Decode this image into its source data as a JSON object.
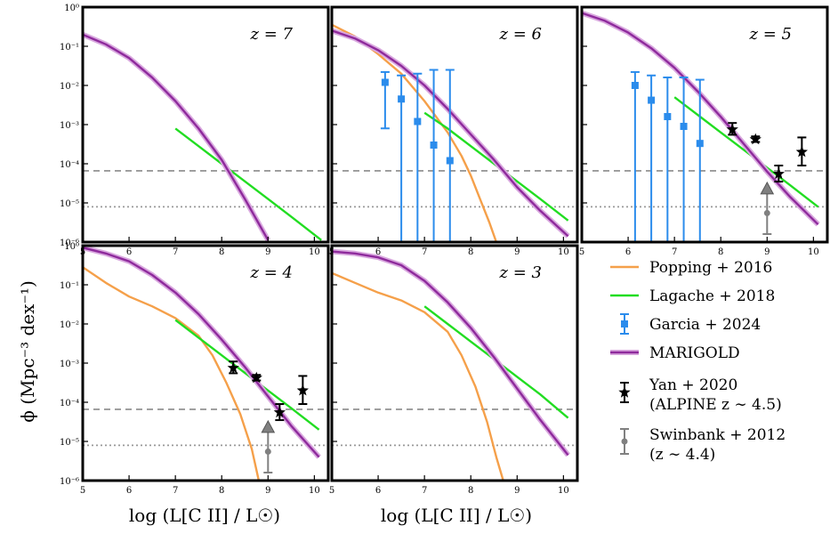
{
  "figure": {
    "ylabel": "ϕ (Mpc⁻³ dex⁻¹)",
    "xlabel": "log (L[C II] / L☉)"
  },
  "colors": {
    "popping": "#f5a04a",
    "lagache": "#22dd22",
    "garcia": "#2b8cec",
    "marigold": "#8e2a9c",
    "marigold_band": "#d9a8df",
    "yan": "#000000",
    "swinbank": "#808080",
    "hline_dashed": "#999999",
    "hline_dotted": "#999999"
  },
  "legend": [
    {
      "key": "popping",
      "label": "Popping + 2016"
    },
    {
      "key": "lagache",
      "label": "Lagache + 2018"
    },
    {
      "key": "garcia",
      "label": "Garcia + 2024"
    },
    {
      "key": "marigold",
      "label": "MARIGOLD"
    },
    {
      "key": "yan",
      "label": "Yan + 2020",
      "label2": "(ALPINE z ∼ 4.5)"
    },
    {
      "key": "swinbank",
      "label": "Swinbank + 2012",
      "label2": "(z ∼ 4.4)"
    }
  ],
  "chart_data": [
    {
      "type": "line",
      "panel": "z7",
      "title": "z = 7",
      "xlim": [
        5,
        10.3
      ],
      "ylim_log10": [
        -6,
        0
      ],
      "xticks": [
        "5",
        "6",
        "7",
        "8",
        "9",
        "10"
      ],
      "yticks": [
        "10⁻⁶",
        "10⁻⁵",
        "10⁻⁴",
        "10⁻³",
        "10⁻²",
        "10⁻¹",
        "10⁰"
      ],
      "hlines_log10": {
        "dashed": -4.18,
        "dotted": -5.1
      },
      "series": [
        {
          "name": "Marigold",
          "x": [
            5,
            5.5,
            6,
            6.5,
            7,
            7.5,
            8,
            8.5,
            9.0
          ],
          "y_log10": [
            -0.7,
            -0.95,
            -1.3,
            -1.8,
            -2.4,
            -3.1,
            -3.9,
            -4.9,
            -5.95
          ]
        },
        {
          "name": "Lagache",
          "x": [
            7,
            7.5,
            8,
            8.5,
            9,
            9.5,
            10.15
          ],
          "y_log10": [
            -3.1,
            -3.55,
            -4.0,
            -4.45,
            -4.9,
            -5.35,
            -5.95
          ]
        }
      ]
    },
    {
      "type": "line",
      "panel": "z6",
      "title": "z = 6",
      "xlim": [
        5,
        10.3
      ],
      "ylim_log10": [
        -6,
        0
      ],
      "xticks": [
        "5",
        "6",
        "7",
        "8",
        "9",
        "10"
      ],
      "yticks": [],
      "hlines_log10": {
        "dashed": -4.18,
        "dotted": -5.1
      },
      "series": [
        {
          "name": "Popping",
          "x": [
            5,
            5.5,
            6,
            6.5,
            7,
            7.5,
            7.8,
            8.0,
            8.2,
            8.4,
            8.55
          ],
          "y_log10": [
            -0.45,
            -0.75,
            -1.2,
            -1.7,
            -2.4,
            -3.2,
            -3.8,
            -4.3,
            -4.9,
            -5.5,
            -6.0
          ]
        },
        {
          "name": "Marigold",
          "x": [
            5,
            5.5,
            6,
            6.5,
            7,
            7.5,
            8,
            8.5,
            9,
            9.5,
            10.1
          ],
          "y_log10": [
            -0.6,
            -0.8,
            -1.1,
            -1.5,
            -2.0,
            -2.6,
            -3.25,
            -3.9,
            -4.6,
            -5.2,
            -5.85
          ]
        },
        {
          "name": "Lagache",
          "x": [
            7,
            7.5,
            8,
            8.5,
            9,
            9.5,
            10.1
          ],
          "y_log10": [
            -2.7,
            -3.1,
            -3.55,
            -4.0,
            -4.45,
            -4.9,
            -5.45
          ]
        },
        {
          "name": "Garcia",
          "type": "errorbar",
          "x": [
            6.15,
            6.5,
            6.85,
            7.2,
            7.55
          ],
          "y": [
            0.012,
            0.0045,
            0.0012,
            0.0003,
            0.00012
          ],
          "yerr_hi": [
            0.022,
            0.018,
            0.02,
            0.025,
            0.025
          ],
          "yerr_lo": [
            0.0008,
            1e-06,
            1e-06,
            1e-06,
            1e-06
          ]
        }
      ]
    },
    {
      "type": "line",
      "panel": "z5",
      "title": "z = 5",
      "xlim": [
        5,
        10.3
      ],
      "ylim_log10": [
        -6,
        0
      ],
      "xticks": [
        "5",
        "6",
        "7",
        "8",
        "9",
        "10"
      ],
      "yticks": [],
      "hlines_log10": {
        "dashed": -4.18,
        "dotted": -5.1
      },
      "series": [
        {
          "name": "Marigold",
          "x": [
            5,
            5.5,
            6,
            6.5,
            7,
            7.5,
            8,
            8.5,
            9,
            9.5,
            10.1
          ],
          "y_log10": [
            -0.15,
            -0.35,
            -0.65,
            -1.05,
            -1.55,
            -2.15,
            -2.8,
            -3.5,
            -4.2,
            -4.85,
            -5.55
          ]
        },
        {
          "name": "Lagache",
          "x": [
            7,
            7.5,
            8,
            8.5,
            9,
            9.5,
            10.1
          ],
          "y_log10": [
            -2.3,
            -2.75,
            -3.2,
            -3.65,
            -4.1,
            -4.55,
            -5.1
          ]
        },
        {
          "name": "Garcia",
          "type": "errorbar",
          "x": [
            6.15,
            6.5,
            6.85,
            7.2,
            7.55
          ],
          "y": [
            0.01,
            0.0042,
            0.0016,
            0.0009,
            0.00033
          ],
          "yerr_hi": [
            0.022,
            0.018,
            0.016,
            0.016,
            0.014
          ],
          "yerr_lo": [
            1e-06,
            1e-06,
            1e-06,
            1e-06,
            1e-06
          ]
        },
        {
          "name": "Yan",
          "type": "errorbar",
          "x": [
            8.25,
            8.75,
            9.25,
            9.75
          ],
          "y": [
            0.00075,
            0.00042,
            5.5e-05,
            0.0002
          ],
          "yerr_hi": [
            0.0011,
            0.0005,
            9e-05,
            0.00047
          ],
          "yerr_lo": [
            0.00055,
            0.00036,
            3.5e-05,
            9e-05
          ]
        },
        {
          "name": "Swinbank",
          "x": [
            9.0
          ],
          "y": [
            5.5e-06
          ],
          "upper_marker": 2.2e-05,
          "yerr_lo": [
            1.6e-06
          ]
        }
      ]
    },
    {
      "type": "line",
      "panel": "z4",
      "title": "z = 4",
      "xlim": [
        5,
        10.3
      ],
      "ylim_log10": [
        -6,
        0
      ],
      "xticks": [
        "5",
        "6",
        "7",
        "8",
        "9",
        "10"
      ],
      "yticks": [
        "10⁻⁶",
        "10⁻⁵",
        "10⁻⁴",
        "10⁻³",
        "10⁻²",
        "10⁻¹",
        "10⁰"
      ],
      "hlines_log10": {
        "dashed": -4.18,
        "dotted": -5.1
      },
      "series": [
        {
          "name": "Popping",
          "x": [
            5,
            5.5,
            6,
            6.5,
            7,
            7.5,
            7.8,
            8.1,
            8.4,
            8.65,
            8.8
          ],
          "y_log10": [
            -0.55,
            -0.95,
            -1.3,
            -1.55,
            -1.85,
            -2.3,
            -2.8,
            -3.5,
            -4.3,
            -5.2,
            -6.0
          ]
        },
        {
          "name": "Marigold",
          "x": [
            5,
            5.5,
            6,
            6.5,
            7,
            7.5,
            8,
            8.5,
            9,
            9.5,
            10.1
          ],
          "y_log10": [
            -0.05,
            -0.2,
            -0.4,
            -0.75,
            -1.2,
            -1.75,
            -2.4,
            -3.1,
            -3.85,
            -4.6,
            -5.4
          ]
        },
        {
          "name": "Lagache",
          "x": [
            7,
            7.5,
            8,
            8.5,
            9,
            9.5,
            10.1
          ],
          "y_log10": [
            -1.9,
            -2.35,
            -2.8,
            -3.25,
            -3.7,
            -4.15,
            -4.7
          ]
        },
        {
          "name": "Yan",
          "type": "errorbar",
          "x": [
            8.25,
            8.75,
            9.25,
            9.75
          ],
          "y": [
            0.00075,
            0.00042,
            5.5e-05,
            0.0002
          ],
          "yerr_hi": [
            0.0011,
            0.0005,
            9e-05,
            0.00047
          ],
          "yerr_lo": [
            0.00055,
            0.00036,
            3.5e-05,
            9e-05
          ]
        },
        {
          "name": "Swinbank",
          "x": [
            9.0
          ],
          "y": [
            5.5e-06
          ],
          "upper_marker": 2.2e-05,
          "yerr_lo": [
            1.6e-06
          ]
        }
      ]
    },
    {
      "type": "line",
      "panel": "z3",
      "title": "z = 3",
      "xlim": [
        5,
        10.3
      ],
      "ylim_log10": [
        -6,
        0
      ],
      "xticks": [
        "5",
        "6",
        "7",
        "8",
        "9",
        "10"
      ],
      "yticks": [],
      "hlines_log10": {
        "dashed": -4.18,
        "dotted": -5.1
      },
      "series": [
        {
          "name": "Popping",
          "x": [
            5,
            5.5,
            6,
            6.5,
            7,
            7.5,
            7.8,
            8.1,
            8.35,
            8.55,
            8.7
          ],
          "y_log10": [
            -0.7,
            -0.95,
            -1.2,
            -1.4,
            -1.7,
            -2.2,
            -2.8,
            -3.6,
            -4.5,
            -5.4,
            -6.0
          ]
        },
        {
          "name": "Marigold",
          "x": [
            5,
            5.5,
            6,
            6.5,
            7,
            7.5,
            8,
            8.5,
            9,
            9.5,
            10.1
          ],
          "y_log10": [
            -0.15,
            -0.2,
            -0.3,
            -0.5,
            -0.9,
            -1.45,
            -2.1,
            -2.85,
            -3.65,
            -4.45,
            -5.35
          ]
        },
        {
          "name": "Lagache",
          "x": [
            7,
            7.5,
            8,
            8.5,
            9,
            9.5,
            10.1
          ],
          "y_log10": [
            -1.55,
            -2.0,
            -2.45,
            -2.9,
            -3.35,
            -3.8,
            -4.4
          ]
        }
      ]
    }
  ]
}
